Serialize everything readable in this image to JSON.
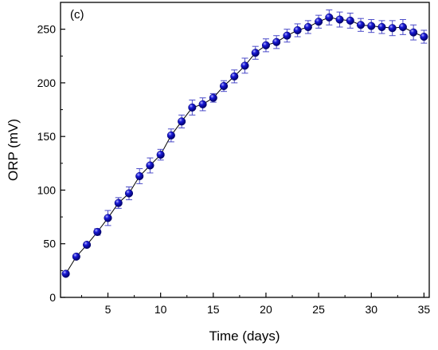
{
  "chart_data": {
    "type": "scatter",
    "panel_label": "(c)",
    "xlabel": "Time (days)",
    "ylabel": "ORP (mV)",
    "xlim": [
      0.5,
      35.5
    ],
    "ylim": [
      0,
      275
    ],
    "xticks": [
      5,
      10,
      15,
      20,
      25,
      30,
      35
    ],
    "yticks": [
      0,
      50,
      100,
      150,
      200,
      250
    ],
    "x_minor_ticks": [
      2.5,
      7.5,
      12.5,
      17.5,
      22.5,
      27.5,
      32.5
    ],
    "y_minor_ticks": [
      25,
      75,
      125,
      175,
      225
    ],
    "grid": false,
    "marker_color": "#1a1ad8",
    "line_color": "#000000",
    "errorbar_color": "#4a4ac8",
    "series": [
      {
        "x": [
          1,
          2,
          3,
          4,
          5,
          6,
          7,
          8,
          9,
          10,
          11,
          12,
          13,
          14,
          15,
          16,
          17,
          18,
          19,
          20,
          21,
          22,
          23,
          24,
          25,
          26,
          27,
          28,
          29,
          30,
          31,
          32,
          33,
          34,
          35
        ],
        "y": [
          22,
          38,
          49,
          61,
          74,
          88,
          97,
          113,
          123,
          133,
          151,
          164,
          177,
          180,
          186,
          197,
          206,
          216,
          228,
          235,
          238,
          244,
          249,
          252,
          257,
          261,
          259,
          258,
          254,
          253,
          252,
          251,
          252,
          247,
          243
        ],
        "error": [
          2,
          2,
          2,
          3,
          7,
          5,
          6,
          7,
          7,
          5,
          6,
          6,
          7,
          6,
          4,
          5,
          6,
          7,
          6,
          6,
          6,
          6,
          6,
          6,
          6,
          7,
          7,
          7,
          6,
          6,
          6,
          7,
          7,
          7,
          6
        ]
      }
    ]
  }
}
